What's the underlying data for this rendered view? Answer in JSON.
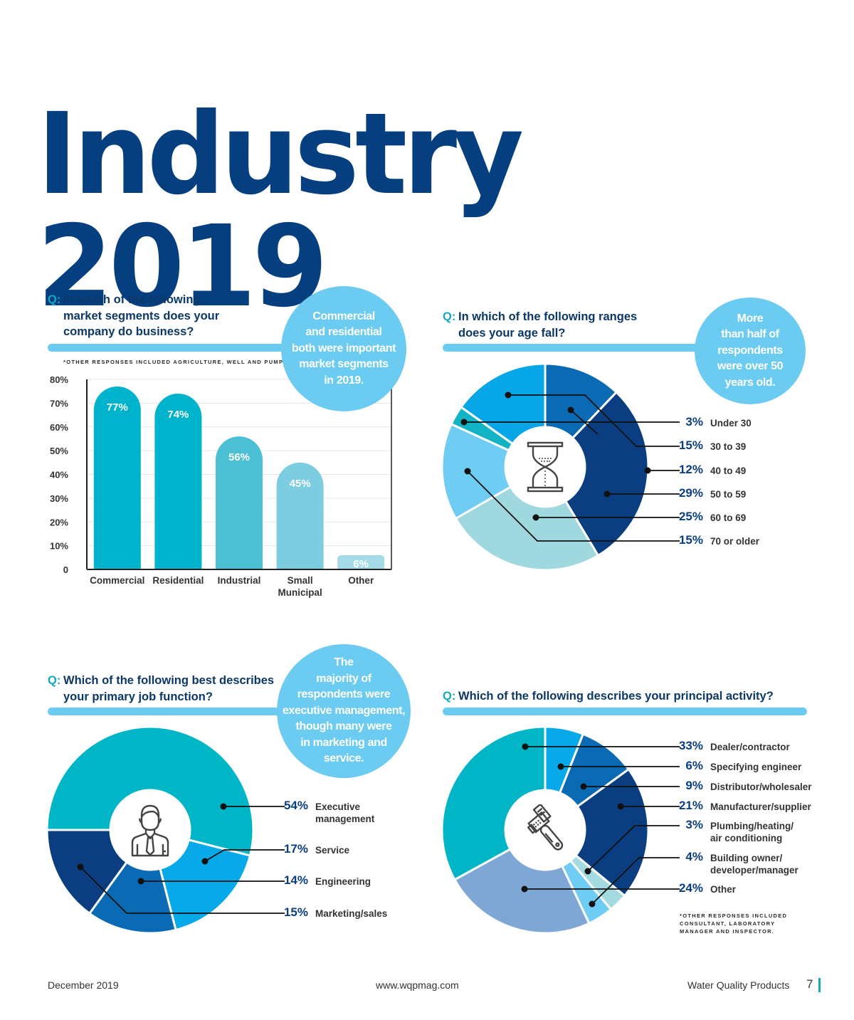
{
  "page": {
    "title": "Industry 2019",
    "footer": {
      "date": "December 2019",
      "url": "www.wqpmag.com",
      "publication": "Water Quality Products",
      "page_number": "7"
    },
    "colors": {
      "title": "#063f80",
      "question": "#0b3866",
      "q_marker": "#13a7c0",
      "bubble": "#6ccbf1",
      "rule": "#6ccbf1"
    }
  },
  "sections": {
    "market": {
      "q_marker": "Q:",
      "question_lines": [
        "In which of the following",
        "market segments does your",
        "company do business?"
      ],
      "bubble_lines": [
        "Commercial",
        "and residential",
        "both were important",
        "market segments",
        "in 2019."
      ],
      "note": "*OTHER RESPONSES INCLUDED AGRICULTURE, WELL AND PUMP."
    },
    "age": {
      "q_marker": "Q:",
      "question_lines": [
        "In which of the following ranges",
        "does your age fall?"
      ],
      "bubble_lines": [
        "More",
        "than half of",
        "respondents",
        "were over 50",
        "years old."
      ],
      "icon": "hourglass-icon"
    },
    "job": {
      "q_marker": "Q:",
      "question_lines": [
        "Which of the following best describes",
        "your primary job function?"
      ],
      "bubble_lines": [
        "The",
        "majority of",
        "respondents were",
        "executive management,",
        "though many were",
        "in marketing and",
        "service."
      ],
      "icon": "businessman-icon"
    },
    "activity": {
      "q_marker": "Q:",
      "question_lines": [
        "Which of the following describes your principal activity?"
      ],
      "note_lines": [
        "*OTHER RESPONSES INCLUDED",
        "CONSULTANT, LABORATORY",
        "MANAGER AND INSPECTOR."
      ],
      "icon": "pipe-wrench-icon"
    }
  },
  "chart_data": [
    {
      "id": "market",
      "type": "bar",
      "title": "In which of the following market segments does your company do business?",
      "categories": [
        "Commercial",
        "Residential",
        "Industrial",
        "Small Municipal",
        "Other"
      ],
      "category_lines": [
        [
          "Commercial"
        ],
        [
          "Residential"
        ],
        [
          "Industrial"
        ],
        [
          "Small",
          "Municipal"
        ],
        [
          "Other"
        ]
      ],
      "values": [
        77,
        74,
        56,
        45,
        6
      ],
      "value_labels": [
        "77%",
        "74%",
        "56%",
        "45%",
        "6%"
      ],
      "colors": [
        "#00b3cc",
        "#00b3cc",
        "#4bbfd3",
        "#7ccde0",
        "#a4dbe6"
      ],
      "ylim": [
        0,
        80
      ],
      "yticks": [
        0,
        10,
        20,
        30,
        40,
        50,
        60,
        70,
        80
      ],
      "ytick_labels": [
        "0",
        "10%",
        "20%",
        "30%",
        "40%",
        "50%",
        "60%",
        "70%",
        "80%"
      ],
      "xlabel": "",
      "ylabel": "",
      "grid": true
    },
    {
      "id": "age",
      "type": "pie",
      "donut": true,
      "title": "In which of the following ranges does your age fall?",
      "slices_clockwise_from_top": [
        {
          "label": "40 to 49",
          "value": 12,
          "color": "#0a6ab3"
        },
        {
          "label": "50 to 59",
          "value": 29,
          "color": "#0b3e80"
        },
        {
          "label": "60 to 69",
          "value": 25,
          "color": "#9fd9df"
        },
        {
          "label": "70 or older",
          "value": 15,
          "color": "#6fccf3"
        },
        {
          "label": "Under 30",
          "value": 3,
          "color": "#12b3c5"
        },
        {
          "label": "30 to 39",
          "value": 15,
          "color": "#07a6e6"
        }
      ],
      "legend": [
        {
          "pct": "3%",
          "label": "Under 30"
        },
        {
          "pct": "15%",
          "label": "30 to 39"
        },
        {
          "pct": "12%",
          "label": "40 to 49"
        },
        {
          "pct": "29%",
          "label": "50 to 59"
        },
        {
          "pct": "25%",
          "label": "60 to 69"
        },
        {
          "pct": "15%",
          "label": "70 or older"
        }
      ],
      "legend_placement": "right"
    },
    {
      "id": "job",
      "type": "pie",
      "donut": true,
      "title": "Which of the following best describes your primary job function?",
      "start": "left",
      "slices_clockwise_from_left": [
        {
          "label": "Executive management",
          "value": 54,
          "color": "#00b5c6"
        },
        {
          "label": "Service",
          "value": 17,
          "color": "#08a9e8"
        },
        {
          "label": "Engineering",
          "value": 14,
          "color": "#0a6ab3"
        },
        {
          "label": "Marketing/sales",
          "value": 15,
          "color": "#0b3e80"
        }
      ],
      "legend": [
        {
          "pct": "54%",
          "label_lines": [
            "Executive",
            "management"
          ]
        },
        {
          "pct": "17%",
          "label_lines": [
            "Service"
          ]
        },
        {
          "pct": "14%",
          "label_lines": [
            "Engineering"
          ]
        },
        {
          "pct": "15%",
          "label_lines": [
            "Marketing/sales"
          ]
        }
      ],
      "legend_placement": "right"
    },
    {
      "id": "activity",
      "type": "pie",
      "donut": true,
      "title": "Which of the following describes your principal activity?",
      "slices_clockwise_from_top": [
        {
          "label": "Specifying engineer",
          "value": 6,
          "color": "#08a9e8"
        },
        {
          "label": "Distributor/wholesaler",
          "value": 9,
          "color": "#0a6ab3"
        },
        {
          "label": "Manufacturer/supplier",
          "value": 21,
          "color": "#0b3e80"
        },
        {
          "label": "Plumbing/heating/air conditioning",
          "value": 3,
          "color": "#a4dbe0"
        },
        {
          "label": "Building owner/developer/manager",
          "value": 4,
          "color": "#6fccf3"
        },
        {
          "label": "Other",
          "value": 24,
          "color": "#7ea7d6"
        },
        {
          "label": "Dealer/contractor",
          "value": 33,
          "color": "#00b5c6"
        }
      ],
      "legend": [
        {
          "pct": "33%",
          "label_lines": [
            "Dealer/contractor"
          ]
        },
        {
          "pct": "6%",
          "label_lines": [
            "Specifying engineer"
          ]
        },
        {
          "pct": "9%",
          "label_lines": [
            "Distributor/wholesaler"
          ]
        },
        {
          "pct": "21%",
          "label_lines": [
            "Manufacturer/supplier"
          ]
        },
        {
          "pct": "3%",
          "label_lines": [
            "Plumbing/heating/",
            "air conditioning"
          ]
        },
        {
          "pct": "4%",
          "label_lines": [
            "Building owner/",
            "developer/manager"
          ]
        },
        {
          "pct": "24%",
          "label_lines": [
            "Other"
          ]
        }
      ],
      "legend_placement": "right"
    }
  ]
}
